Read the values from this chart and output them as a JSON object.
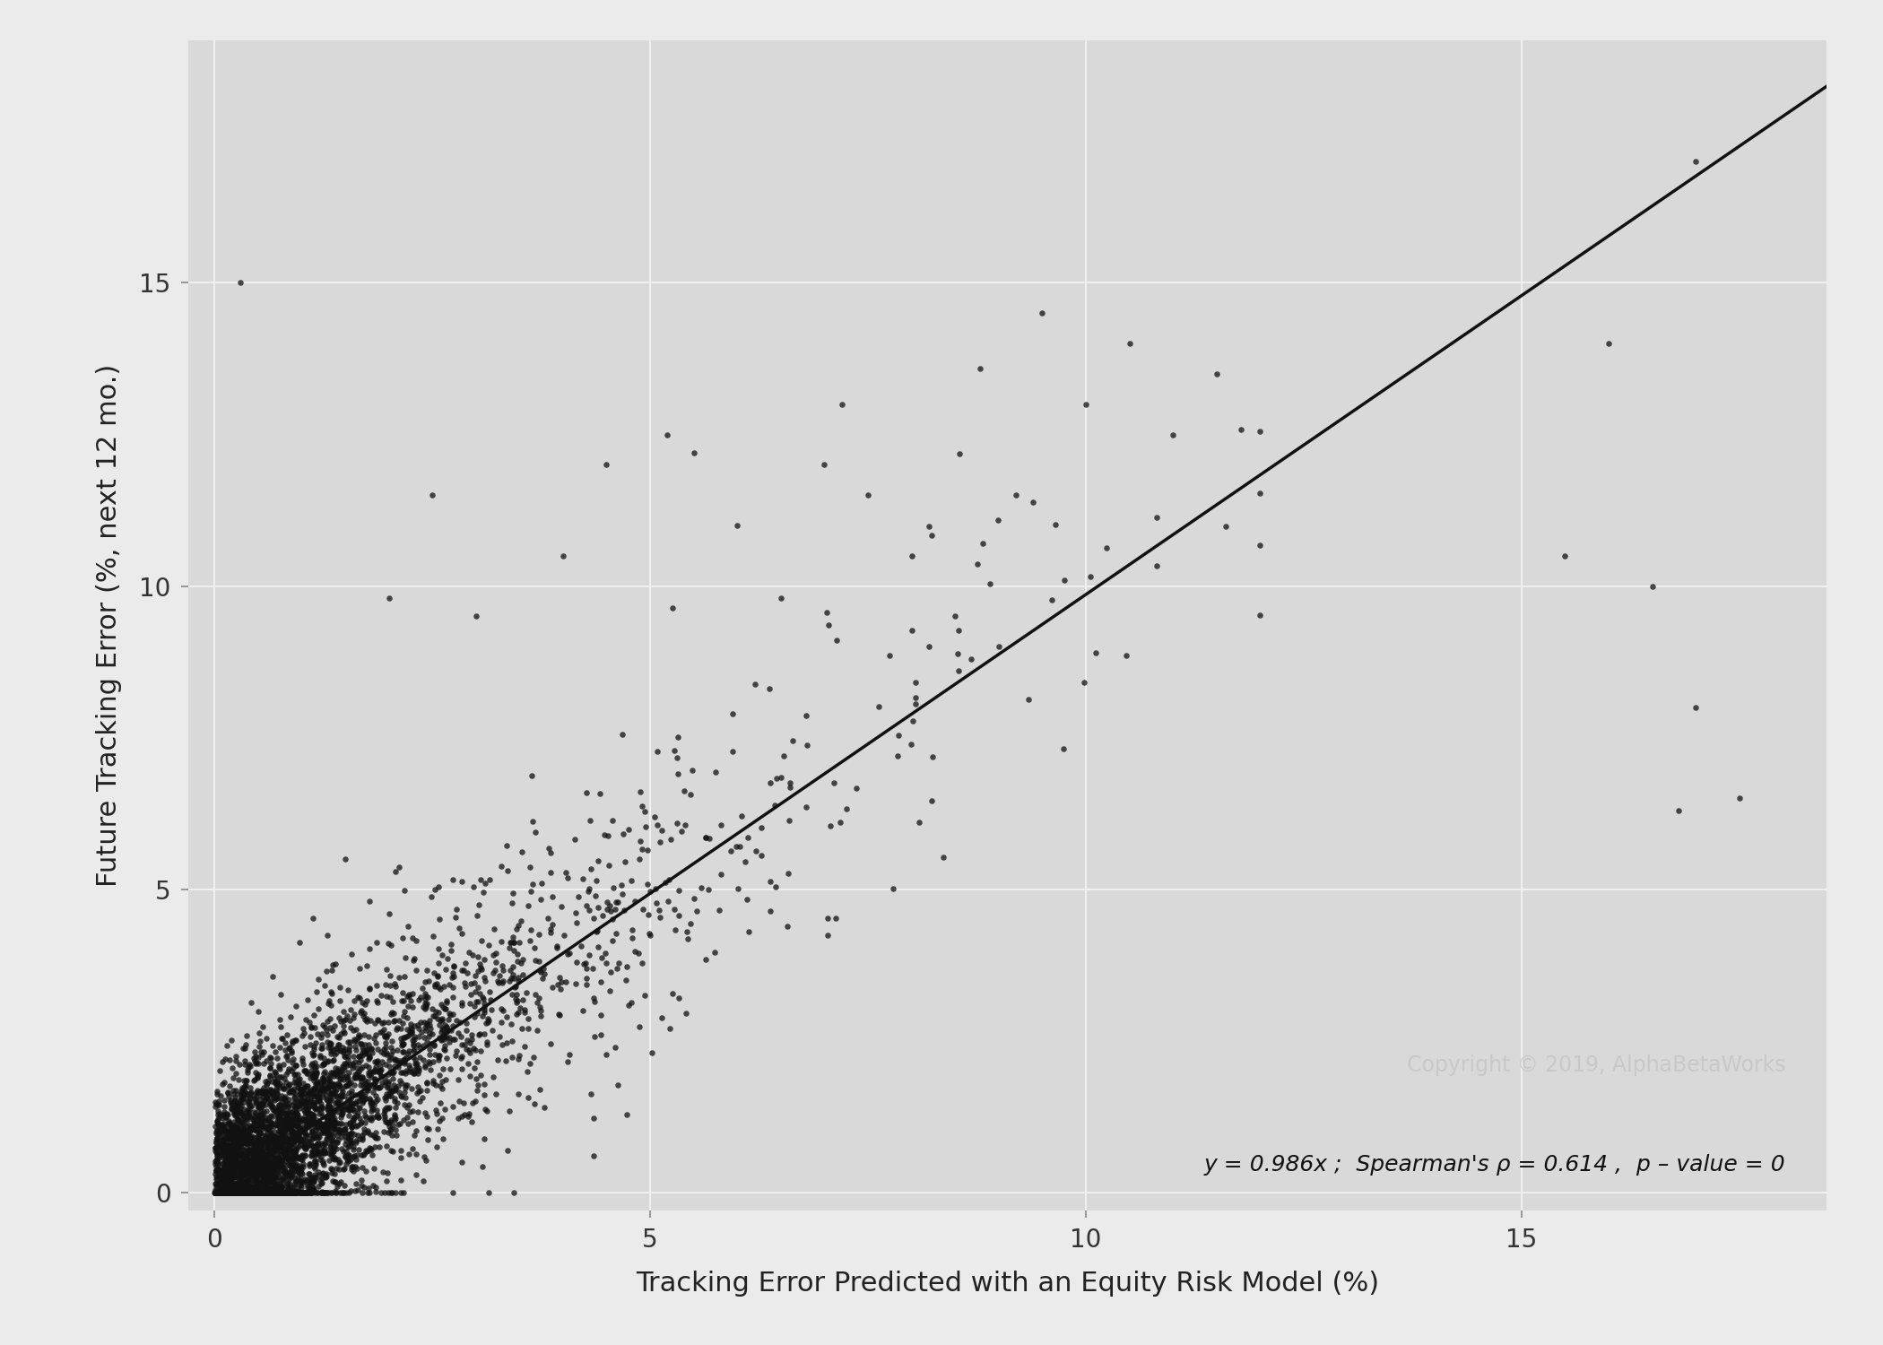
{
  "title": "",
  "xlabel": "Tracking Error Predicted with an Equity Risk Model (%)",
  "ylabel": "Future Tracking Error (%, next 12 mo.)",
  "xlim": [
    -0.3,
    18.5
  ],
  "ylim": [
    -0.3,
    19.0
  ],
  "xticks": [
    0,
    5,
    10,
    15
  ],
  "yticks": [
    0,
    5,
    10,
    15
  ],
  "bg_outer": "#ebebeb",
  "bg_inner": "#d9d9d9",
  "grid_color": "#f0f0f0",
  "point_color": "#111111",
  "point_size": 22,
  "point_alpha": 0.75,
  "line_color": "#111111",
  "line_slope": 0.986,
  "line_x_start": 0.0,
  "line_x_end": 18.6,
  "annotation_text": "y = 0.986x ;  Spearman's ρ = 0.614 ,  p – value = 0",
  "copyright_text": "Copyright © 2019, AlphaBetaWorks",
  "xlabel_fontsize": 22,
  "ylabel_fontsize": 22,
  "tick_fontsize": 20,
  "annotation_fontsize": 18,
  "copyright_fontsize": 17,
  "seed": 42,
  "n_core": 4000,
  "n_sparse": 500
}
